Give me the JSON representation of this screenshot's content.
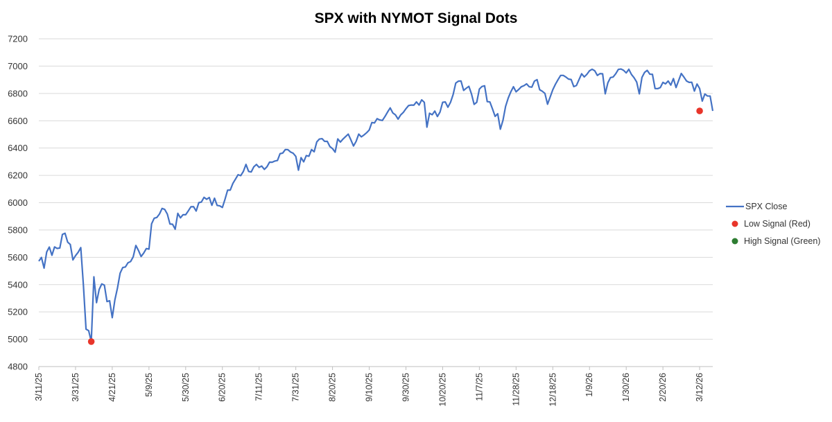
{
  "chart_data": {
    "type": "line",
    "title": "SPX with NYMOT Signal Dots",
    "xlabel": "",
    "ylabel": "",
    "ylim": [
      4800,
      7200
    ],
    "yticks": [
      4800,
      5000,
      5200,
      5400,
      5600,
      5800,
      6000,
      6200,
      6400,
      6600,
      6800,
      7000,
      7200
    ],
    "grid": true,
    "legend_position": "right",
    "colors": {
      "line": "#4472c4",
      "low": "#e8352a",
      "high": "#2e7d32",
      "grid": "#d9d9d9"
    },
    "x_tick_labels": [
      {
        "index": 0,
        "label": "3/11/25"
      },
      {
        "index": 14,
        "label": "3/31/25"
      },
      {
        "index": 28,
        "label": "4/21/25"
      },
      {
        "index": 42,
        "label": "5/9/25"
      },
      {
        "index": 56,
        "label": "5/30/25"
      },
      {
        "index": 70,
        "label": "6/20/25"
      },
      {
        "index": 84,
        "label": "7/11/25"
      },
      {
        "index": 98,
        "label": "7/31/25"
      },
      {
        "index": 112,
        "label": "8/20/25"
      },
      {
        "index": 126,
        "label": "9/10/25"
      },
      {
        "index": 140,
        "label": "9/30/25"
      },
      {
        "index": 154,
        "label": "10/20/25"
      },
      {
        "index": 168,
        "label": "11/7/25"
      },
      {
        "index": 182,
        "label": "11/28/25"
      },
      {
        "index": 196,
        "label": "12/18/25"
      },
      {
        "index": 210,
        "label": "1/9/26"
      },
      {
        "index": 224,
        "label": "1/30/26"
      },
      {
        "index": 238,
        "label": "2/20/26"
      },
      {
        "index": 252,
        "label": "3/12/26"
      }
    ],
    "series": [
      {
        "name": "SPX Close",
        "values": [
          5572,
          5599,
          5521,
          5639,
          5675,
          5615,
          5676,
          5665,
          5668,
          5768,
          5776,
          5711,
          5694,
          5581,
          5612,
          5637,
          5671,
          5396,
          5074,
          5063,
          4983,
          5457,
          5268,
          5364,
          5405,
          5396,
          5276,
          5282,
          5158,
          5288,
          5376,
          5484,
          5525,
          5529,
          5560,
          5569,
          5604,
          5687,
          5650,
          5606,
          5631,
          5664,
          5660,
          5845,
          5886,
          5892,
          5917,
          5958,
          5951,
          5917,
          5844,
          5842,
          5806,
          5922,
          5889,
          5912,
          5912,
          5940,
          5970,
          5971,
          5939,
          6000,
          6005,
          6039,
          6025,
          6038,
          5981,
          6033,
          5980,
          5977,
          5965,
          6025,
          6092,
          6092,
          6141,
          6173,
          6205,
          6198,
          6229,
          6280,
          6229,
          6225,
          6263,
          6280,
          6259,
          6268,
          6244,
          6263,
          6297,
          6296,
          6305,
          6309,
          6359,
          6363,
          6389,
          6388,
          6371,
          6362,
          6339,
          6238,
          6330,
          6299,
          6345,
          6340,
          6389,
          6373,
          6445,
          6466,
          6469,
          6449,
          6449,
          6411,
          6396,
          6370,
          6467,
          6444,
          6466,
          6484,
          6502,
          6460,
          6415,
          6449,
          6502,
          6482,
          6496,
          6512,
          6532,
          6587,
          6584,
          6615,
          6606,
          6602,
          6631,
          6664,
          6694,
          6657,
          6643,
          6612,
          6643,
          6661,
          6688,
          6711,
          6715,
          6714,
          6738,
          6715,
          6753,
          6735,
          6553,
          6655,
          6644,
          6671,
          6631,
          6664,
          6735,
          6738,
          6699,
          6735,
          6792,
          6876,
          6890,
          6891,
          6822,
          6838,
          6852,
          6796,
          6720,
          6735,
          6832,
          6851,
          6856,
          6740,
          6738,
          6687,
          6632,
          6651,
          6538,
          6603,
          6705,
          6766,
          6812,
          6849,
          6812,
          6829,
          6849,
          6857,
          6870,
          6849,
          6846,
          6890,
          6901,
          6827,
          6816,
          6800,
          6721,
          6774,
          6827,
          6867,
          6901,
          6932,
          6932,
          6920,
          6905,
          6902,
          6850,
          6858,
          6901,
          6944,
          6921,
          6940,
          6966,
          6977,
          6966,
          6932,
          6945,
          6944,
          6797,
          6878,
          6916,
          6920,
          6944,
          6976,
          6979,
          6969,
          6950,
          6977,
          6939,
          6915,
          6883,
          6797,
          6917,
          6954,
          6969,
          6941,
          6940,
          6836,
          6835,
          6843,
          6881,
          6870,
          6891,
          6861,
          6909,
          6843,
          6895,
          6946,
          6920,
          6891,
          6881,
          6882,
          6817,
          6869,
          6836,
          6744,
          6796,
          6781,
          6781,
          6672
        ]
      }
    ],
    "signals": {
      "low": {
        "name": "Low Signal (Red)",
        "points": [
          {
            "index": 20,
            "value": 4983
          },
          {
            "index": 252,
            "value": 6672
          }
        ]
      },
      "high": {
        "name": "High Signal (Green)",
        "points": []
      }
    }
  }
}
